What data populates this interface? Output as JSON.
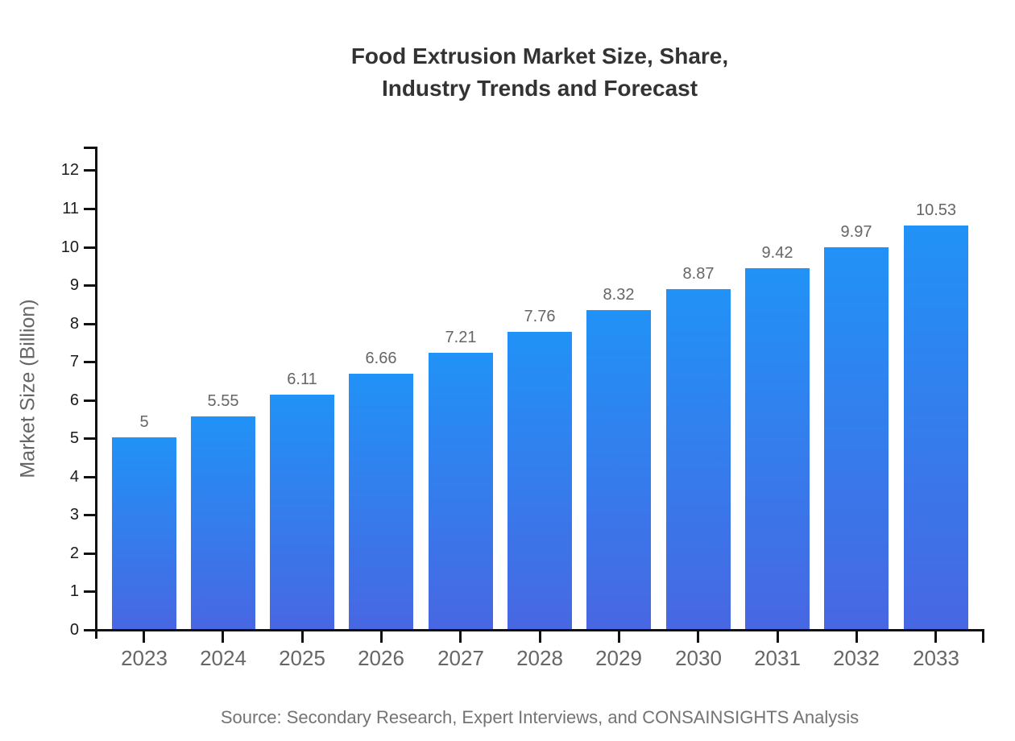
{
  "title": {
    "line1": "Food Extrusion Market Size, Share,",
    "line2": "Industry Trends and Forecast"
  },
  "source": {
    "text": "Source: Secondary Research, Expert Interviews, and CONSAINSIGHTS Analysis"
  },
  "axes": {
    "y_title": "Market Size (Billion)",
    "y_tick_values": [
      0,
      1,
      2,
      3,
      4,
      5,
      6,
      7,
      8,
      9,
      10,
      11,
      12
    ]
  },
  "colors": {
    "bar_gradient_top": "#2192F7",
    "bar_gradient_bottom": "#4867E2",
    "axis": "#111111",
    "title_text": "#333333",
    "y_tick_text": "#1b1b1b",
    "x_tick_text": "#666666",
    "value_label_text": "#666666",
    "source_text": "#737373"
  },
  "chart_data": {
    "type": "bar",
    "title": "Food Extrusion Market Size, Share, Industry Trends and Forecast",
    "categories": [
      "2023",
      "2024",
      "2025",
      "2026",
      "2027",
      "2028",
      "2029",
      "2030",
      "2031",
      "2032",
      "2033"
    ],
    "values": [
      5,
      5.55,
      6.11,
      6.66,
      7.21,
      7.76,
      8.32,
      8.87,
      9.42,
      9.97,
      10.53
    ],
    "value_labels": [
      "5",
      "5.55",
      "6.11",
      "6.66",
      "7.21",
      "7.76",
      "8.32",
      "8.87",
      "9.42",
      "9.97",
      "10.53"
    ],
    "xlabel": "",
    "ylabel": "Market Size (Billion)",
    "ylim": [
      0,
      12.6
    ],
    "y_tick_step": 1,
    "grid": false,
    "legend": false,
    "bar_style": "vertical gradient, bright blue top to indigo bottom",
    "source": "Source: Secondary Research, Expert Interviews, and CONSAINSIGHTS Analysis"
  }
}
